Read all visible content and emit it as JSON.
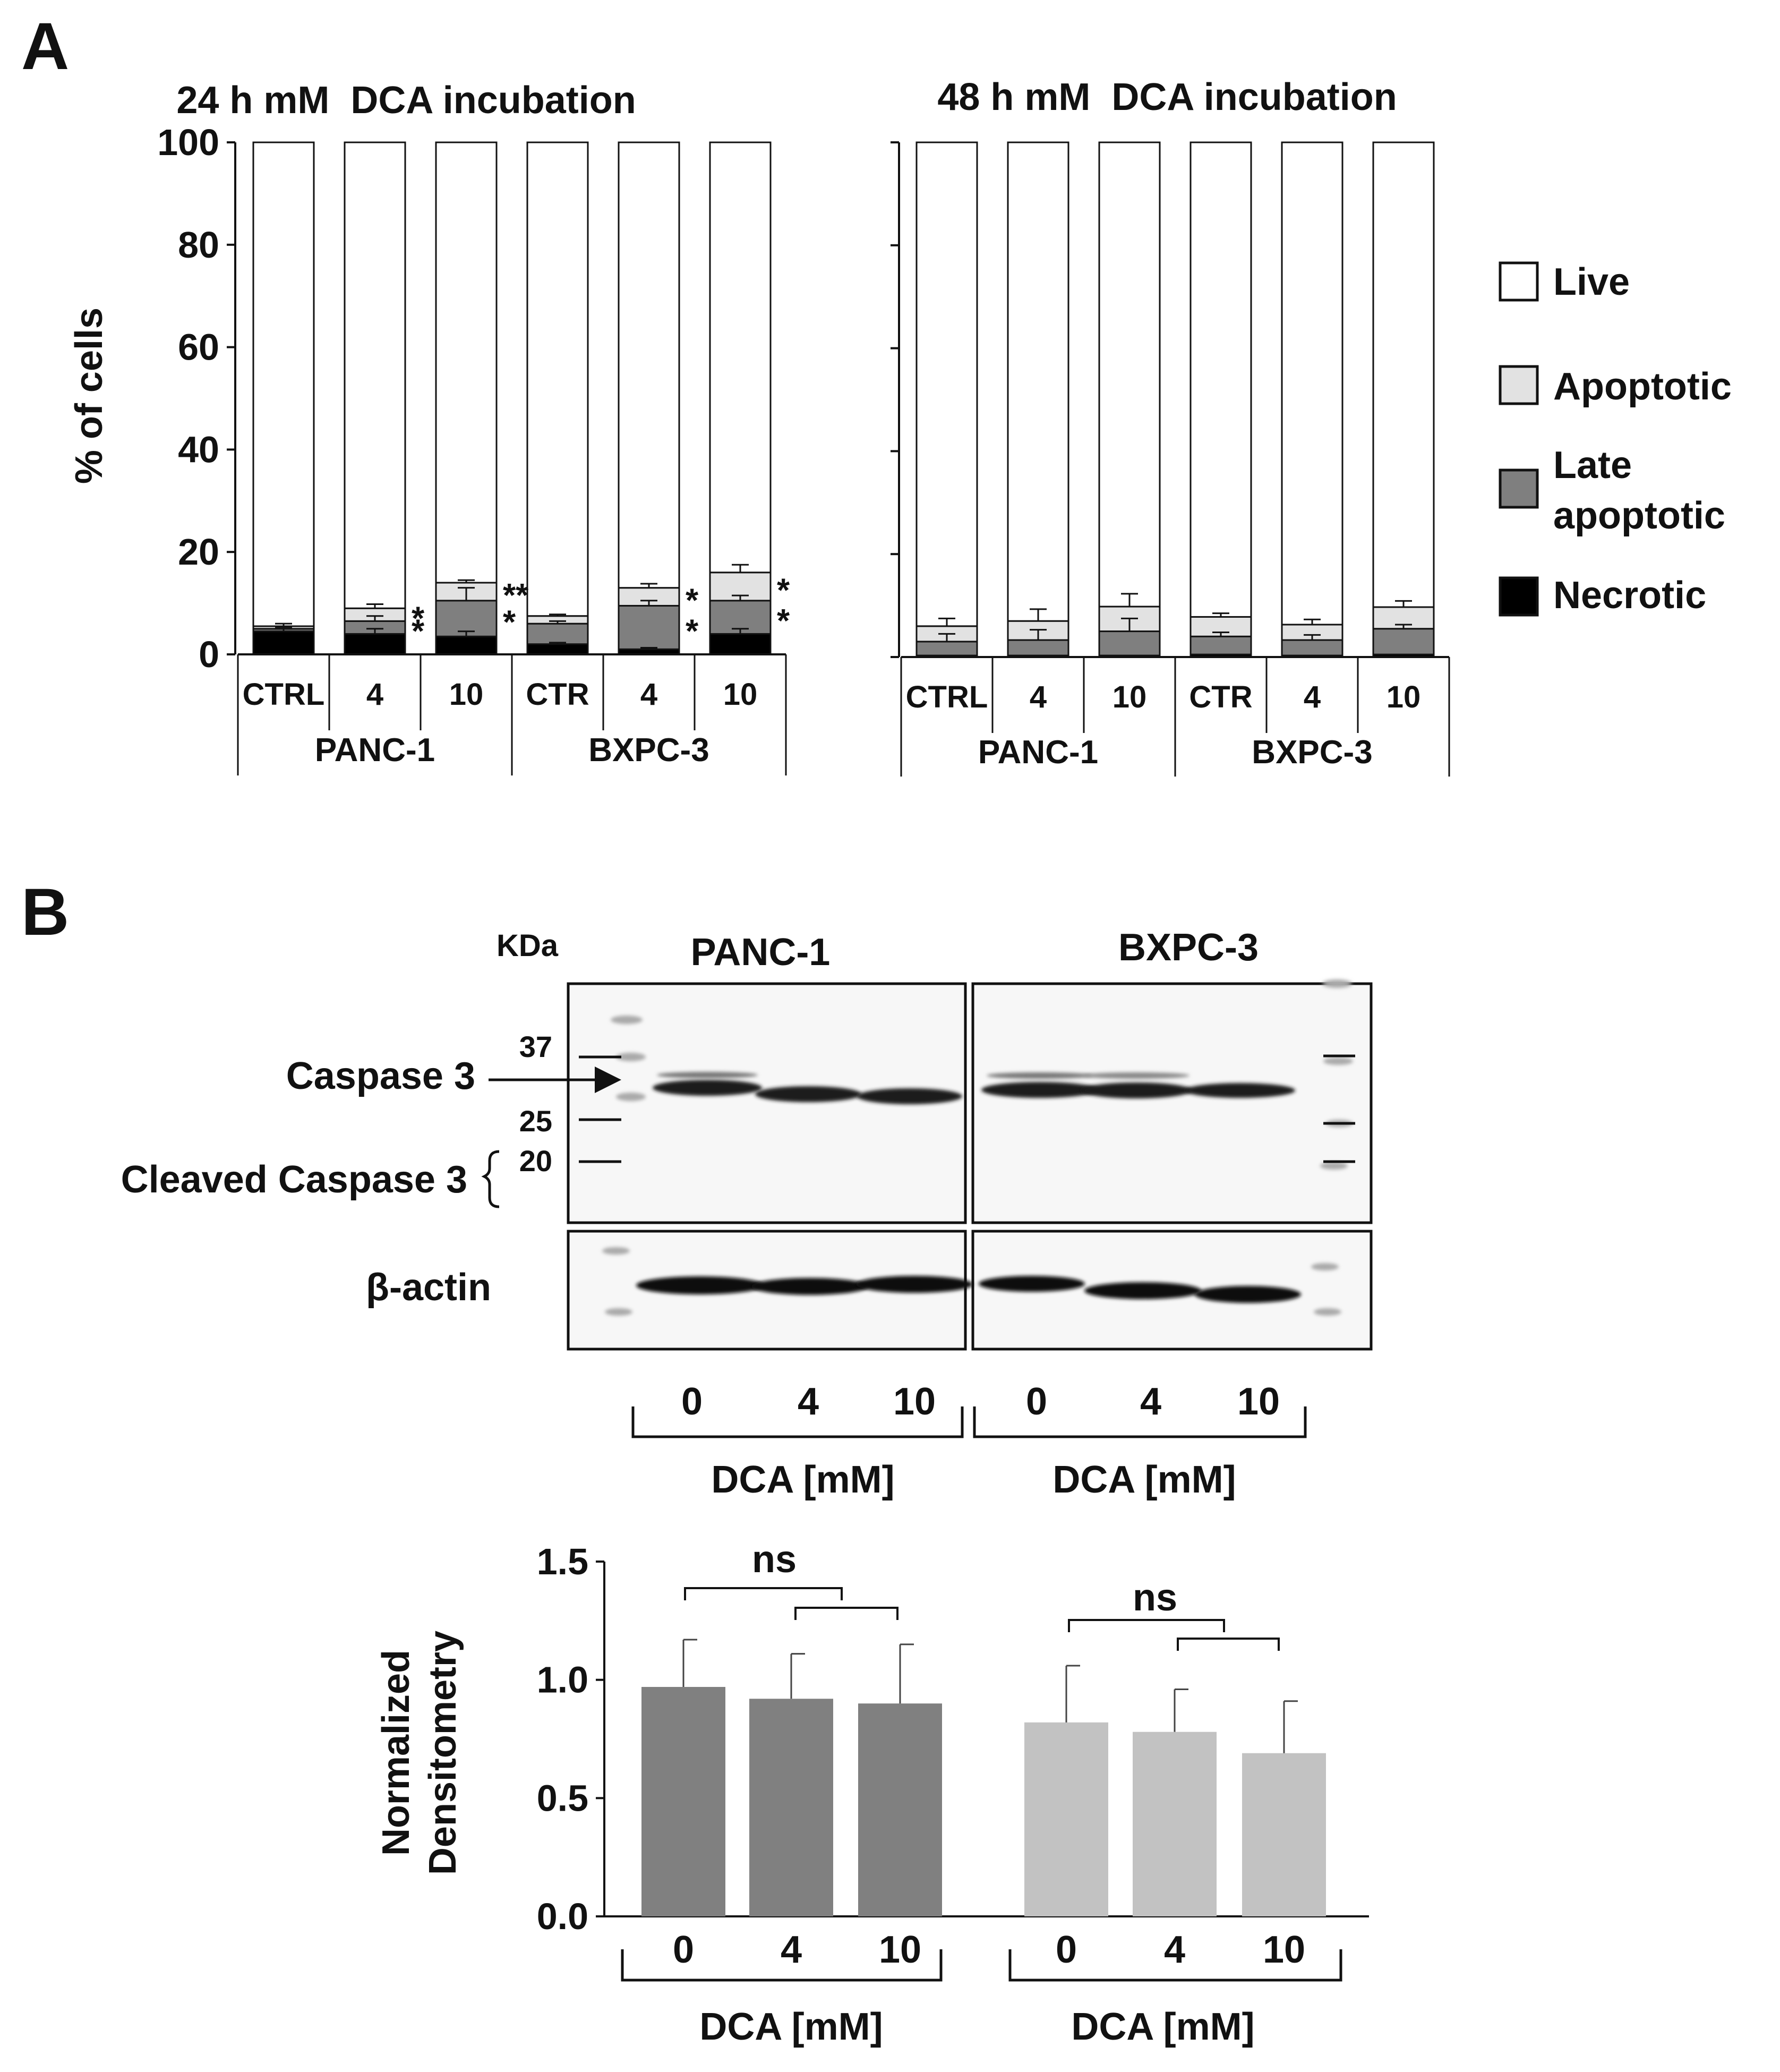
{
  "panel_labels": {
    "a": "A",
    "b": "B"
  },
  "chart_data": [
    {
      "type": "bar",
      "stacked": true,
      "title": "24 h mM  DCA incubation",
      "ylabel": "% of cells",
      "ylim": [
        0,
        100
      ],
      "yticks": [
        0,
        20,
        40,
        60,
        80,
        100
      ],
      "categories": [
        "CTRL",
        "4",
        "10",
        "CTR",
        "4",
        "10"
      ],
      "groups": [
        {
          "name": "PANC-1",
          "categories": [
            "CTRL",
            "4",
            "10"
          ]
        },
        {
          "name": "BXPC-3",
          "categories": [
            "CTR",
            "4",
            "10"
          ]
        }
      ],
      "series": [
        {
          "name": "Necrotic",
          "values": [
            4.5,
            4,
            3.5,
            2,
            1,
            4
          ],
          "error": [
            0.5,
            1,
            1,
            0.3,
            0.3,
            1
          ]
        },
        {
          "name": "Late apoptotic",
          "values": [
            0.5,
            2.5,
            7,
            4,
            8.5,
            6.5
          ],
          "error": [
            0.3,
            1,
            2.5,
            0.5,
            1,
            1
          ]
        },
        {
          "name": "Apoptotic",
          "values": [
            0.5,
            2.5,
            3.5,
            1.5,
            3.5,
            5.5
          ],
          "error": [
            0.5,
            0.8,
            0.5,
            0.3,
            0.8,
            1.5
          ]
        },
        {
          "name": "Live",
          "values": [
            94.5,
            91,
            86,
            92.5,
            87,
            84
          ],
          "error": [
            0,
            0,
            0,
            0,
            0,
            0
          ]
        }
      ],
      "significance": [
        {
          "category_index": 1,
          "marks": [
            "*",
            "*"
          ]
        },
        {
          "category_index": 2,
          "marks": [
            "*",
            "**"
          ]
        },
        {
          "category_index": 4,
          "marks": [
            "*",
            "*"
          ]
        },
        {
          "category_index": 5,
          "marks": [
            "*",
            "*"
          ]
        }
      ]
    },
    {
      "type": "bar",
      "stacked": true,
      "title": "48 h mM  DCA incubation",
      "ylabel": "",
      "ylim": [
        0,
        100
      ],
      "yticks": [
        0,
        20,
        40,
        60,
        80,
        100
      ],
      "categories": [
        "CTRL",
        "4",
        "10",
        "CTR",
        "4",
        "10"
      ],
      "groups": [
        {
          "name": "PANC-1",
          "categories": [
            "CTRL",
            "4",
            "10"
          ]
        },
        {
          "name": "BXPC-3",
          "categories": [
            "CTR",
            "4",
            "10"
          ]
        }
      ],
      "series": [
        {
          "name": "Necrotic",
          "values": [
            0.3,
            0.3,
            0.3,
            0.5,
            0.3,
            0.5
          ],
          "error": [
            0,
            0,
            0,
            0,
            0,
            0
          ]
        },
        {
          "name": "Late apoptotic",
          "values": [
            2.7,
            3,
            4.7,
            3.5,
            3,
            5
          ],
          "error": [
            1.5,
            2,
            2.5,
            0.8,
            1,
            0.8
          ]
        },
        {
          "name": "Apoptotic",
          "values": [
            3,
            3.7,
            4.8,
            3.8,
            3,
            4.2
          ],
          "error": [
            1.5,
            2.3,
            2.5,
            0.7,
            1,
            1.2
          ]
        },
        {
          "name": "Live",
          "values": [
            94,
            93,
            90.2,
            92.2,
            93.7,
            90.3
          ],
          "error": [
            0,
            0,
            0,
            0,
            0,
            0
          ]
        }
      ],
      "significance": []
    },
    {
      "type": "bar",
      "title": "",
      "ylabel": "Normalized Densitometry",
      "ylim": [
        0,
        1.5
      ],
      "yticks": [
        "0.0",
        "0.5",
        "1.0",
        "1.5"
      ],
      "categories": [
        "0",
        "4",
        "10",
        "0",
        "4",
        "10"
      ],
      "groups": [
        {
          "name": "DCA [mM]",
          "color": "#808080"
        },
        {
          "name": "DCA [mM]",
          "color": "#c2c2c2"
        }
      ],
      "values": [
        0.97,
        0.92,
        0.9,
        0.82,
        0.78,
        0.69
      ],
      "error": [
        0.2,
        0.19,
        0.25,
        0.24,
        0.18,
        0.22
      ],
      "significance": [
        {
          "label": "ns",
          "group": 0
        },
        {
          "label": "ns",
          "group": 1
        }
      ]
    }
  ],
  "legend": {
    "items": [
      {
        "label": "Live",
        "color": "#ffffff"
      },
      {
        "label": "Apoptotic",
        "color": "#e2e2e2"
      },
      {
        "label": "Late",
        "label2": "apoptotic",
        "color": "#7f7f7f"
      },
      {
        "label": "Necrotic",
        "color": "#000000"
      }
    ]
  },
  "colors": {
    "Live": "#ffffff",
    "Apoptotic": "#e2e2e2",
    "Late apoptotic": "#7f7f7f",
    "Necrotic": "#000000",
    "panc": "#808080",
    "bxpc": "#c2c2c2"
  },
  "blot": {
    "kda_label": "KDa",
    "cell_lines": [
      "PANC-1",
      "BXPC-3"
    ],
    "markers": [
      "37",
      "25",
      "20"
    ],
    "protein_labels": {
      "caspase": "Caspase 3",
      "cleaved": "Cleaved Caspase 3",
      "actin": "β-actin"
    },
    "lanes": [
      "0",
      "4",
      "10",
      "0",
      "4",
      "10"
    ],
    "axis_label": "DCA [mM]"
  }
}
